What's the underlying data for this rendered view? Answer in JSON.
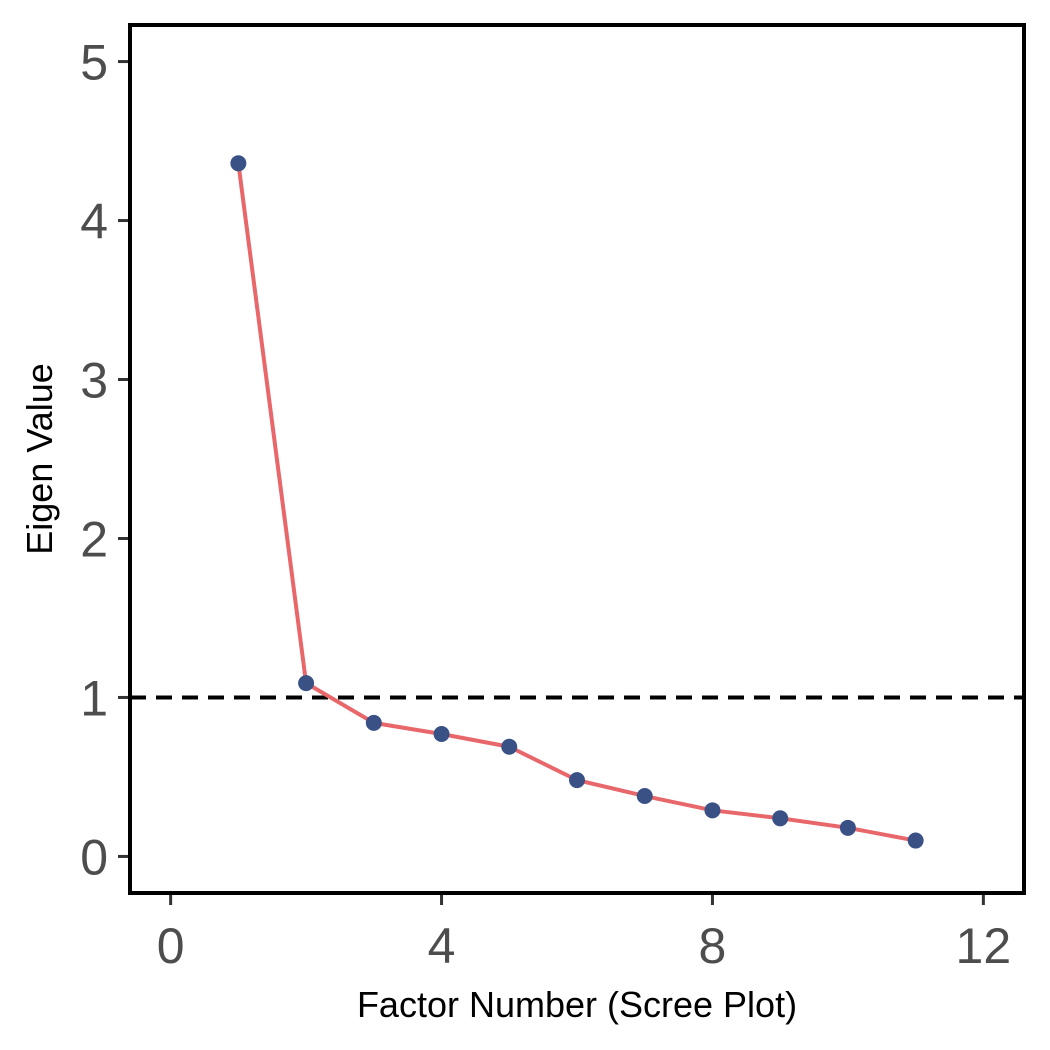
{
  "chart_data": {
    "type": "line",
    "title": "",
    "xlabel": "Factor Number (Scree Plot)",
    "ylabel": "Eigen Value",
    "xlim": [
      -0.6,
      12.6
    ],
    "ylim": [
      -0.23,
      5.23
    ],
    "xticks": [
      0,
      4,
      8,
      12
    ],
    "yticks": [
      0,
      1,
      2,
      3,
      4,
      5
    ],
    "xtick_labels": [
      "0",
      "4",
      "8",
      "12"
    ],
    "ytick_labels": [
      "0",
      "1",
      "2",
      "3",
      "4",
      "5"
    ],
    "grid": false,
    "legend": "none",
    "reference_line": {
      "y": 1,
      "style": "dashed",
      "color": "#000000"
    },
    "series": [
      {
        "x": [
          1,
          2,
          3,
          4,
          5,
          6,
          7,
          8,
          9,
          10,
          11
        ],
        "values": [
          4.36,
          1.09,
          0.84,
          0.77,
          0.69,
          0.48,
          0.38,
          0.29,
          0.24,
          0.18,
          0.1
        ],
        "line_color": "#e8676b",
        "point_color": "#3a5186"
      }
    ]
  }
}
